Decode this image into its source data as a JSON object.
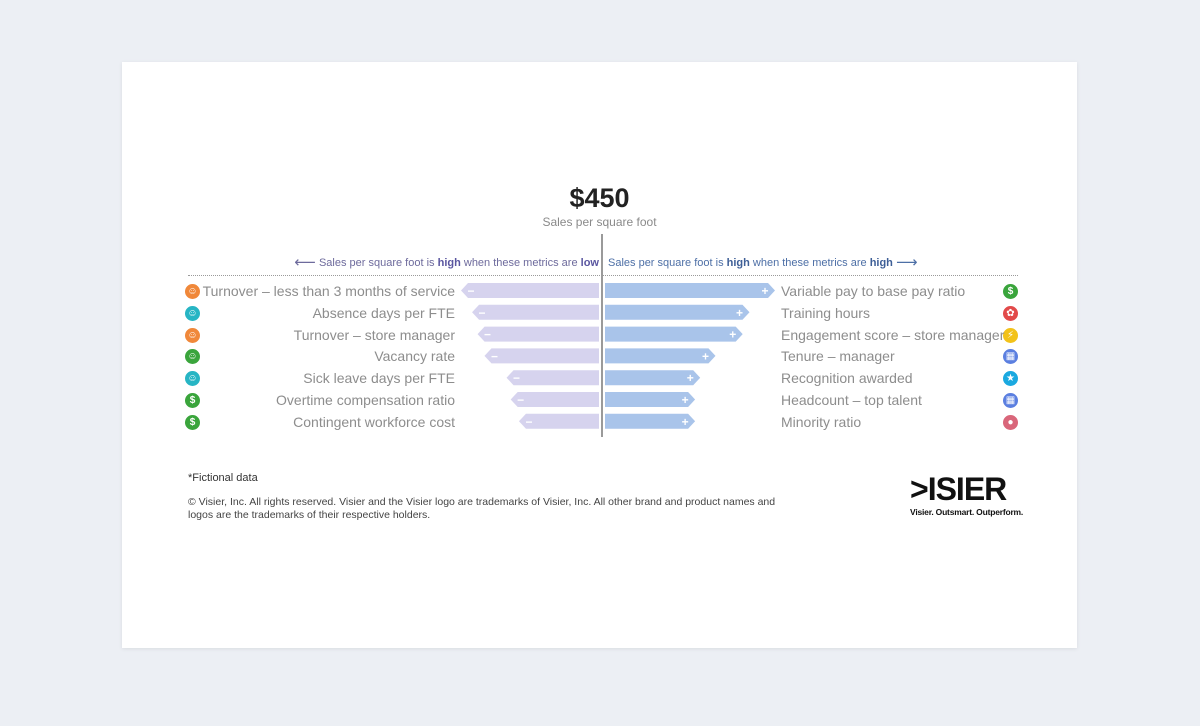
{
  "header": {
    "value": "$450",
    "caption": "Sales per square foot"
  },
  "guides": {
    "left_arrow": "⟵",
    "left_prefix": "Sales per square foot is ",
    "left_bold": "high",
    "left_middle": " when these metrics are ",
    "left_bold2": "low",
    "right_prefix": "Sales per square foot is ",
    "right_bold": "high",
    "right_middle": " when these metrics are ",
    "right_bold2": "high",
    "right_arrow": "⟶"
  },
  "colors": {
    "negative_bar": "#d6d3ee",
    "positive_bar": "#a9c4ea",
    "axis": "#9a9a9a"
  },
  "chart_data": {
    "type": "bar",
    "negative_series": {
      "sign": "−",
      "items": [
        {
          "label": "Turnover – less than 3 months of service",
          "value": 1.0,
          "icon": "person-icon",
          "icon_color": "#f0883a"
        },
        {
          "label": "Absence days per FTE",
          "value": 0.92,
          "icon": "person-icon",
          "icon_color": "#27b5c4"
        },
        {
          "label": "Turnover – store manager",
          "value": 0.88,
          "icon": "person-icon",
          "icon_color": "#f0883a"
        },
        {
          "label": "Vacancy rate",
          "value": 0.83,
          "icon": "person-plus-icon",
          "icon_color": "#3aa53c"
        },
        {
          "label": "Sick leave days per FTE",
          "value": 0.67,
          "icon": "person-icon",
          "icon_color": "#27b5c4"
        },
        {
          "label": "Overtime compensation ratio",
          "value": 0.64,
          "icon": "dollar-icon",
          "icon_color": "#3aa53c"
        },
        {
          "label": "Contingent workforce cost",
          "value": 0.58,
          "icon": "dollar-icon",
          "icon_color": "#3aa53c"
        }
      ]
    },
    "positive_series": {
      "sign": "+",
      "items": [
        {
          "label": "Variable pay to base pay ratio",
          "value": 1.0,
          "icon": "dollar-icon",
          "icon_color": "#3aa53c"
        },
        {
          "label": "Training hours",
          "value": 0.85,
          "icon": "ribbon-icon",
          "icon_color": "#e24a4a"
        },
        {
          "label": "Engagement score – store manager",
          "value": 0.81,
          "icon": "lightning-icon",
          "icon_color": "#f2c21a"
        },
        {
          "label": "Tenure – manager",
          "value": 0.65,
          "icon": "chart-icon",
          "icon_color": "#5b7fe0"
        },
        {
          "label": "Recognition awarded",
          "value": 0.56,
          "icon": "star-icon",
          "icon_color": "#1aa9e0"
        },
        {
          "label": "Headcount – top talent",
          "value": 0.53,
          "icon": "chart-icon",
          "icon_color": "#5b7fe0"
        },
        {
          "label": "Minority ratio",
          "value": 0.53,
          "icon": "people-icon",
          "icon_color": "#d9667a"
        }
      ]
    }
  },
  "footer": {
    "footnote": "*Fictional data",
    "copyright": "© Visier, Inc. All rights reserved. Visier and the Visier logo are trademarks of Visier, Inc. All other brand and product names and logos are the trademarks of their respective holders."
  },
  "logo": {
    "word": ">ISIER",
    "tagline": "Visier. Outsmart. Outperform."
  }
}
